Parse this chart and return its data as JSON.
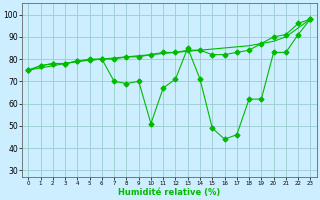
{
  "x": [
    0,
    1,
    2,
    3,
    4,
    5,
    6,
    7,
    8,
    9,
    10,
    11,
    12,
    13,
    14,
    15,
    16,
    17,
    18,
    19,
    20,
    21,
    22,
    23
  ],
  "line_straight": [
    75,
    76,
    77,
    78,
    79,
    79.5,
    80,
    80.5,
    81,
    81.5,
    82,
    82.5,
    83,
    83.5,
    84,
    84.5,
    85,
    85.5,
    86,
    87,
    88,
    90,
    94,
    98
  ],
  "line_smooth": [
    75,
    77,
    78,
    78,
    79,
    79.5,
    80,
    80,
    81,
    81,
    82,
    83,
    83,
    84,
    84,
    82,
    82,
    83,
    84,
    87,
    90,
    91,
    96,
    98
  ],
  "line_jagged": [
    75,
    77,
    78,
    78,
    79,
    80,
    80,
    70,
    69,
    70,
    51,
    67,
    71,
    85,
    71,
    49,
    44,
    46,
    62,
    62,
    83,
    83,
    91,
    98
  ],
  "bg_color": "#cceeff",
  "grid_color": "#99cccc",
  "line_color": "#00bb00",
  "marker": "D",
  "marker_size": 2.5,
  "xlabel": "Humidité relative (%)",
  "ylabel_ticks": [
    30,
    40,
    50,
    60,
    70,
    80,
    90,
    100
  ],
  "ylim": [
    27,
    105
  ],
  "xlim": [
    -0.5,
    23.5
  ]
}
